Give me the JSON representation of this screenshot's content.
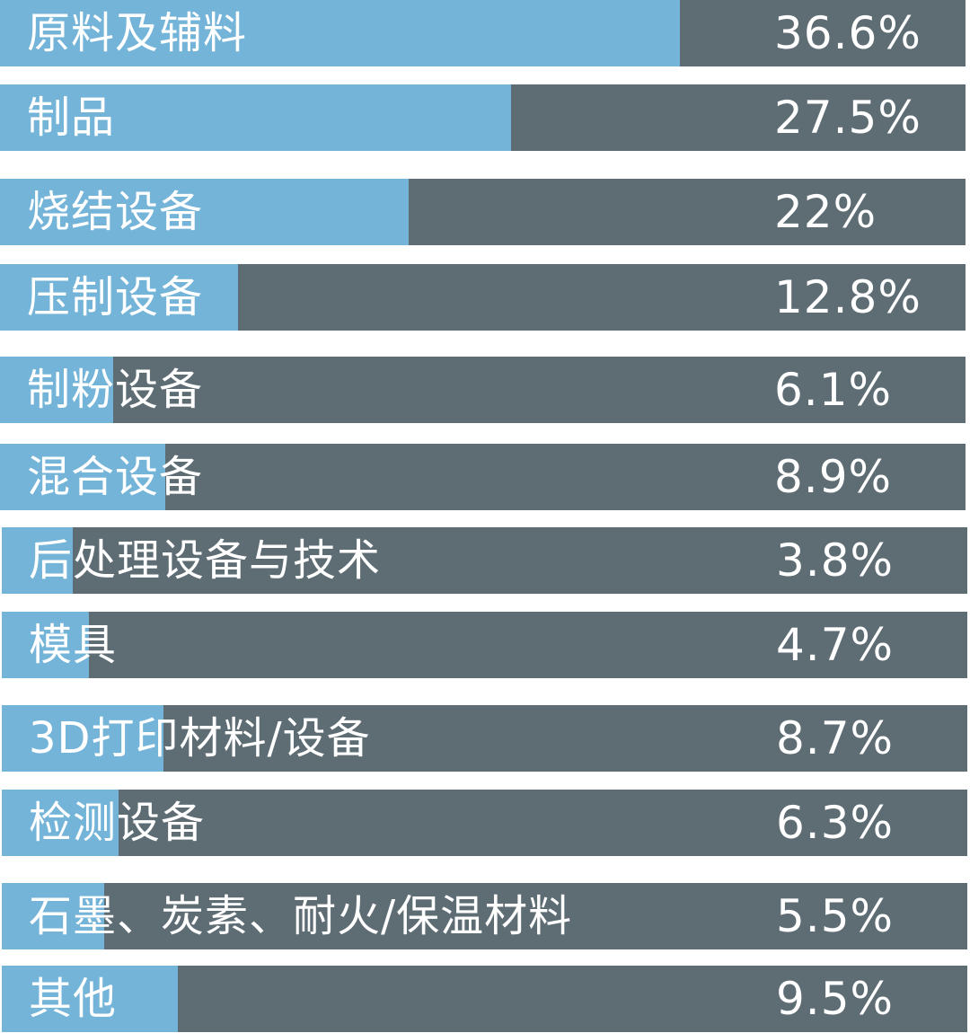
{
  "colors": {
    "fill": "#74b4d8",
    "track": "#5e6c74"
  },
  "chart_data": {
    "type": "bar",
    "orientation": "horizontal",
    "categories": [
      "原料及辅料",
      "制品",
      "烧结设备",
      "压制设备",
      "制粉设备",
      "混合设备",
      "后处理设备与技术",
      "模具",
      "3D打印材料/设备",
      "检测设备",
      "石墨、炭素、耐火/保温材料",
      "其他"
    ],
    "value_labels": [
      "36.6%",
      "27.5%",
      "22%",
      "12.8%",
      "6.1%",
      "8.9%",
      "3.8%",
      "4.7%",
      "8.7%",
      "6.3%",
      "5.5%",
      "9.5%"
    ],
    "values": [
      36.6,
      27.5,
      22,
      12.8,
      6.1,
      8.9,
      3.8,
      4.7,
      8.7,
      6.3,
      5.5,
      9.5
    ],
    "xlim": [
      0,
      52
    ]
  }
}
